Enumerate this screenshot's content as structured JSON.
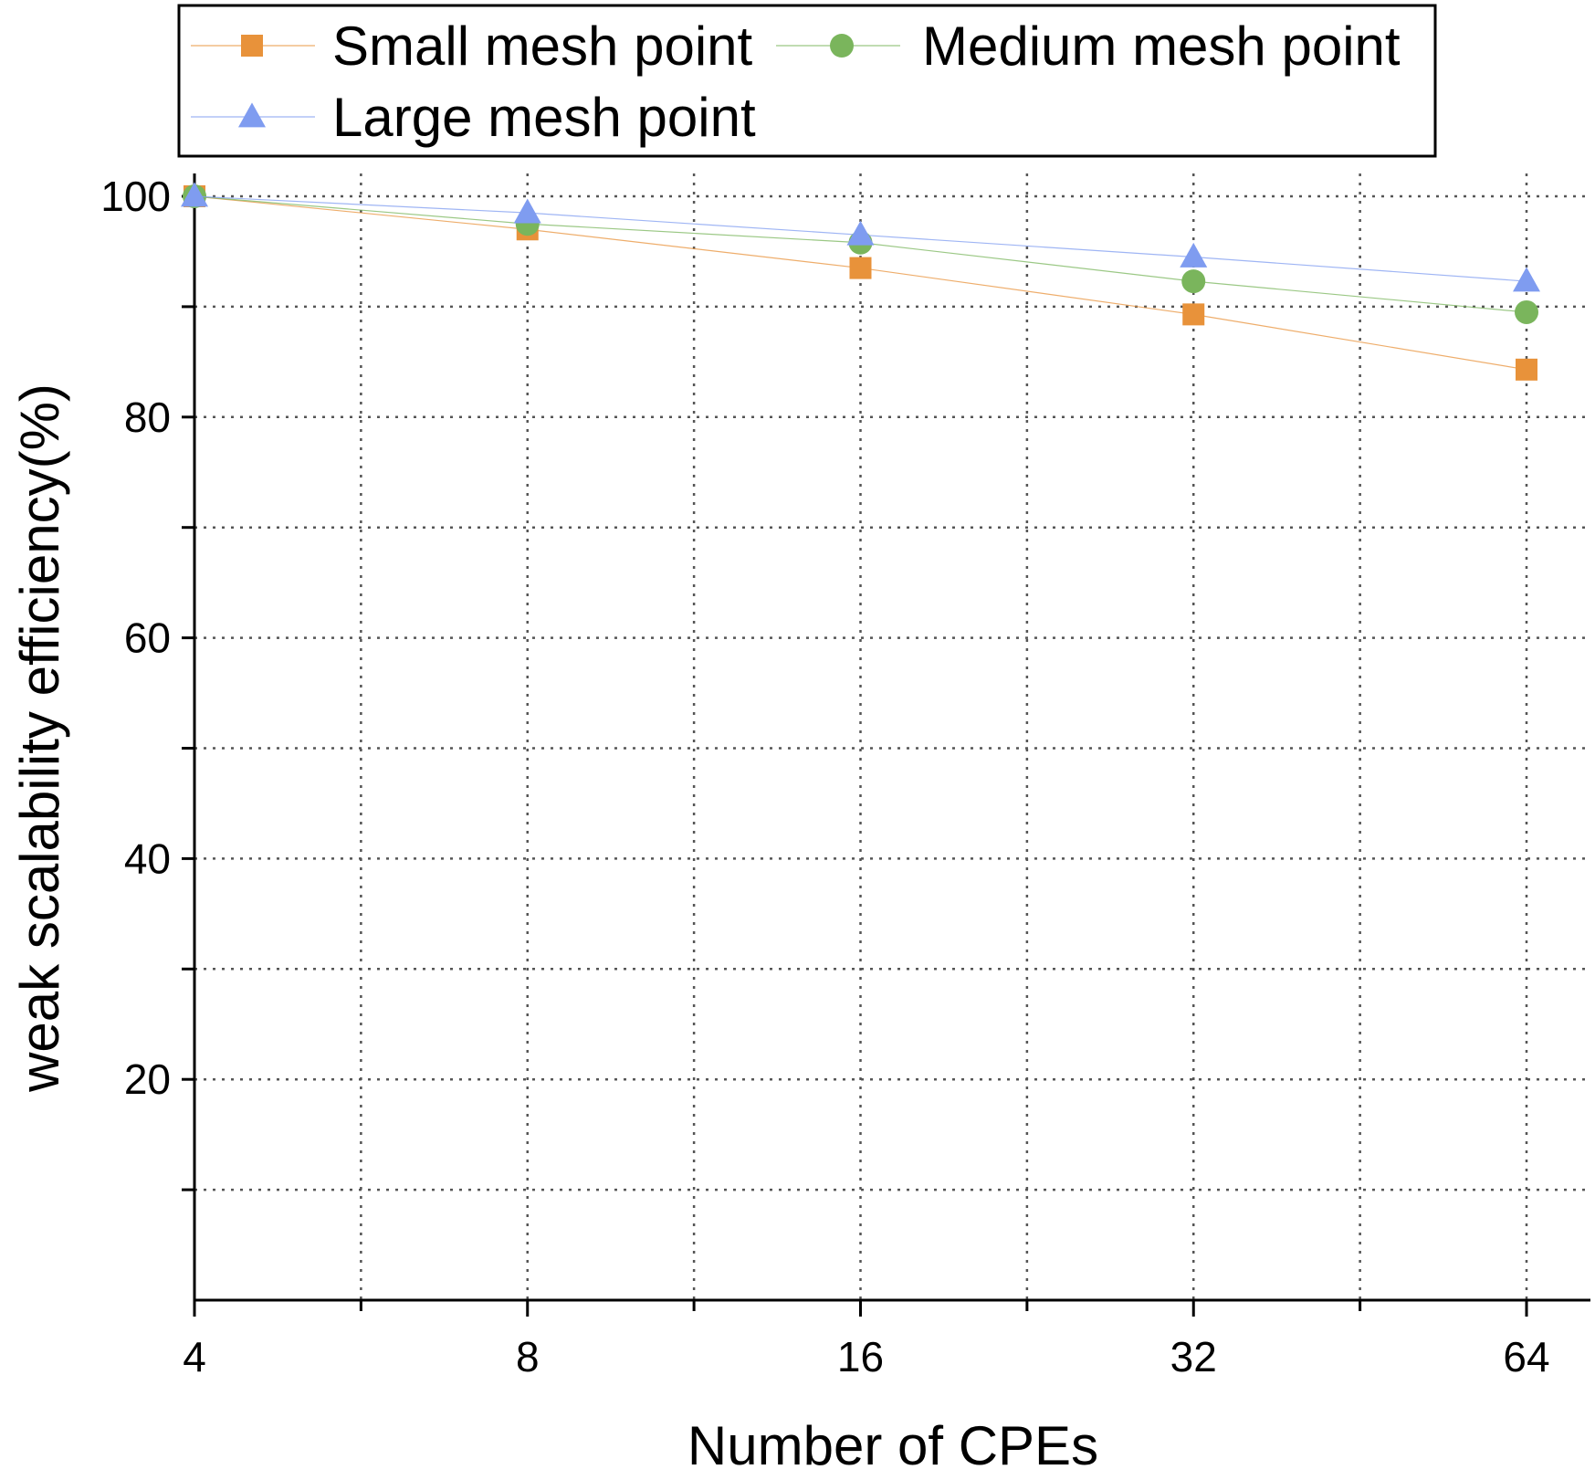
{
  "chart_data": {
    "type": "line",
    "title": "",
    "xlabel": "Number of CPEs",
    "ylabel": "weak scalability efficiency(%)",
    "x_scale": "log2",
    "x": [
      4,
      8,
      16,
      32,
      64
    ],
    "x_tick_labels": [
      "4",
      "8",
      "16",
      "32",
      "64"
    ],
    "xlim": [
      4,
      84
    ],
    "ylim": [
      0,
      102
    ],
    "y_ticks": [
      20,
      40,
      60,
      80,
      100
    ],
    "y_tick_labels": [
      "20",
      "40",
      "60",
      "80",
      "100"
    ],
    "y_grid": [
      10,
      20,
      30,
      40,
      50,
      60,
      70,
      80,
      90,
      100
    ],
    "grid": true,
    "legend_position": "top",
    "series": [
      {
        "name": "Small mesh point",
        "marker": "square",
        "color": "#E8923A",
        "values": [
          100,
          97.0,
          93.5,
          89.3,
          84.3
        ]
      },
      {
        "name": "Medium mesh point",
        "marker": "circle",
        "color": "#7AB55C",
        "values": [
          100,
          97.5,
          95.8,
          92.3,
          89.5
        ]
      },
      {
        "name": "Large mesh point",
        "marker": "triangle",
        "color": "#7F9CF0",
        "values": [
          100,
          98.5,
          96.5,
          94.5,
          92.3
        ]
      }
    ]
  }
}
